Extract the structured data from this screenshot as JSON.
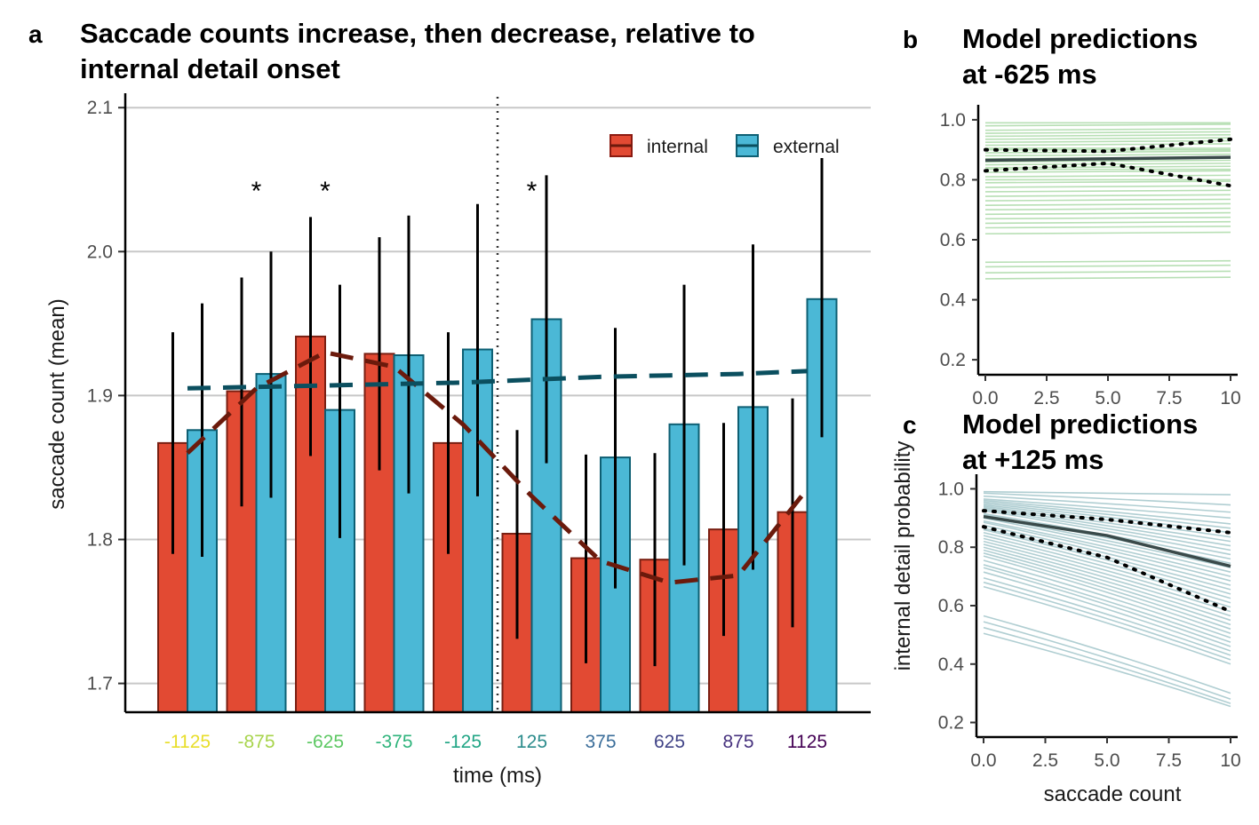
{
  "chart_data": [
    {
      "panel": "a",
      "type": "bar",
      "title_line1": "Saccade counts increase, then decrease, relative to",
      "title_line2": "internal detail onset",
      "xlabel": "time (ms)",
      "ylabel": "saccade count (mean)",
      "ylim": [
        1.68,
        2.11
      ],
      "yticks": [
        "1.7",
        "1.8",
        "1.9",
        "2.0",
        "2.1"
      ],
      "grid": true,
      "categories": [
        "-1125",
        "-875",
        "-625",
        "-375",
        "-125",
        "125",
        "375",
        "625",
        "875",
        "1125"
      ],
      "category_colors": [
        "#e8de2a",
        "#a8d44c",
        "#5dc863",
        "#2fb47c",
        "#21a585",
        "#2c8c8c",
        "#3b6e9a",
        "#414487",
        "#46317e",
        "#440154"
      ],
      "series": [
        {
          "name": "internal",
          "color": "#e24a33",
          "values": [
            1.867,
            1.903,
            1.941,
            1.929,
            1.867,
            1.804,
            1.787,
            1.786,
            1.807,
            1.819
          ],
          "ci_low": [
            1.79,
            1.823,
            1.858,
            1.848,
            1.79,
            1.731,
            1.714,
            1.712,
            1.733,
            1.739
          ],
          "ci_high": [
            1.944,
            1.982,
            2.024,
            2.01,
            1.944,
            1.876,
            1.859,
            1.86,
            1.881,
            1.898
          ]
        },
        {
          "name": "external",
          "color": "#4bb8d6",
          "values": [
            1.876,
            1.915,
            1.89,
            1.928,
            1.932,
            1.953,
            1.857,
            1.88,
            1.892,
            1.967
          ],
          "ci_low": [
            1.788,
            1.829,
            1.801,
            1.832,
            1.83,
            1.853,
            1.766,
            1.782,
            1.779,
            1.871
          ],
          "ci_high": [
            1.964,
            2.0,
            1.977,
            2.025,
            2.033,
            2.053,
            1.947,
            1.977,
            2.005,
            2.065
          ]
        }
      ],
      "trend_internal": [
        1.86,
        1.905,
        1.93,
        1.92,
        1.88,
        1.83,
        1.785,
        1.77,
        1.775,
        1.835
      ],
      "trend_external": [
        1.905,
        1.906,
        1.907,
        1.908,
        1.909,
        1.911,
        1.913,
        1.914,
        1.915,
        1.917
      ],
      "significance": [
        "-875",
        "-625",
        "125"
      ],
      "significance_marker": "*",
      "vertical_line_at": "between -125 and 125",
      "legend_position": "top-right"
    },
    {
      "panel": "b",
      "type": "line",
      "title_line1": "Model predictions",
      "title_line2": "at -625 ms",
      "xlim": [
        0,
        10
      ],
      "ylim": [
        0.15,
        1.05
      ],
      "xticks": [
        "0.0",
        "2.5",
        "5.0",
        "7.5",
        "10"
      ],
      "yticks": [
        "0.2",
        "0.4",
        "0.6",
        "0.8",
        "1.0"
      ],
      "line_color": "#7cc576",
      "mean_line": [
        [
          0,
          0.865
        ],
        [
          10,
          0.875
        ]
      ],
      "ci_upper": [
        [
          0,
          0.9
        ],
        [
          5,
          0.895
        ],
        [
          10,
          0.935
        ]
      ],
      "ci_lower": [
        [
          0,
          0.83
        ],
        [
          5,
          0.855
        ],
        [
          10,
          0.78
        ]
      ],
      "sample_lines": [
        [
          0.99,
          0.99
        ],
        [
          0.98,
          0.985
        ],
        [
          0.965,
          0.97
        ],
        [
          0.955,
          0.96
        ],
        [
          0.945,
          0.95
        ],
        [
          0.935,
          0.94
        ],
        [
          0.925,
          0.93
        ],
        [
          0.915,
          0.92
        ],
        [
          0.905,
          0.905
        ],
        [
          0.9,
          0.9
        ],
        [
          0.89,
          0.895
        ],
        [
          0.88,
          0.885
        ],
        [
          0.87,
          0.875
        ],
        [
          0.86,
          0.865
        ],
        [
          0.85,
          0.855
        ],
        [
          0.84,
          0.845
        ],
        [
          0.835,
          0.835
        ],
        [
          0.825,
          0.83
        ],
        [
          0.81,
          0.815
        ],
        [
          0.8,
          0.8
        ],
        [
          0.79,
          0.795
        ],
        [
          0.775,
          0.78
        ],
        [
          0.76,
          0.765
        ],
        [
          0.745,
          0.75
        ],
        [
          0.73,
          0.735
        ],
        [
          0.715,
          0.72
        ],
        [
          0.7,
          0.705
        ],
        [
          0.685,
          0.69
        ],
        [
          0.67,
          0.675
        ],
        [
          0.655,
          0.66
        ],
        [
          0.64,
          0.645
        ],
        [
          0.62,
          0.625
        ],
        [
          0.525,
          0.53
        ],
        [
          0.51,
          0.515
        ],
        [
          0.49,
          0.495
        ],
        [
          0.47,
          0.475
        ]
      ]
    },
    {
      "panel": "c",
      "type": "line",
      "title_line1": "Model predictions",
      "title_line2": "at +125 ms",
      "xlabel": "saccade count",
      "ylabel": "internal detail probability",
      "xlim": [
        0,
        10
      ],
      "ylim": [
        0.15,
        1.05
      ],
      "xticks": [
        "0.0",
        "2.5",
        "5.0",
        "7.5",
        "10"
      ],
      "yticks": [
        "0.2",
        "0.4",
        "0.6",
        "0.8",
        "1.0"
      ],
      "line_color": "#6fa5ad",
      "mean_line": [
        [
          0,
          0.905
        ],
        [
          5,
          0.84
        ],
        [
          10,
          0.735
        ]
      ],
      "ci_upper": [
        [
          0,
          0.925
        ],
        [
          5,
          0.895
        ],
        [
          10,
          0.85
        ]
      ],
      "ci_lower": [
        [
          0,
          0.87
        ],
        [
          5,
          0.765
        ],
        [
          10,
          0.58
        ]
      ],
      "sample_lines": [
        [
          0.99,
          0.98
        ],
        [
          0.985,
          0.945
        ],
        [
          0.975,
          0.92
        ],
        [
          0.965,
          0.9
        ],
        [
          0.96,
          0.88
        ],
        [
          0.955,
          0.865
        ],
        [
          0.95,
          0.85
        ],
        [
          0.945,
          0.835
        ],
        [
          0.94,
          0.82
        ],
        [
          0.935,
          0.805
        ],
        [
          0.93,
          0.79
        ],
        [
          0.925,
          0.775
        ],
        [
          0.915,
          0.76
        ],
        [
          0.91,
          0.745
        ],
        [
          0.905,
          0.73
        ],
        [
          0.9,
          0.715
        ],
        [
          0.89,
          0.7
        ],
        [
          0.885,
          0.685
        ],
        [
          0.875,
          0.67
        ],
        [
          0.865,
          0.655
        ],
        [
          0.86,
          0.64
        ],
        [
          0.85,
          0.625
        ],
        [
          0.84,
          0.61
        ],
        [
          0.83,
          0.595
        ],
        [
          0.82,
          0.58
        ],
        [
          0.81,
          0.565
        ],
        [
          0.8,
          0.55
        ],
        [
          0.79,
          0.535
        ],
        [
          0.78,
          0.52
        ],
        [
          0.77,
          0.505
        ],
        [
          0.755,
          0.49
        ],
        [
          0.74,
          0.475
        ],
        [
          0.73,
          0.46
        ],
        [
          0.715,
          0.445
        ],
        [
          0.695,
          0.43
        ],
        [
          0.68,
          0.415
        ],
        [
          0.665,
          0.4
        ],
        [
          0.565,
          0.3
        ],
        [
          0.545,
          0.28
        ],
        [
          0.525,
          0.265
        ],
        [
          0.505,
          0.255
        ]
      ]
    }
  ]
}
